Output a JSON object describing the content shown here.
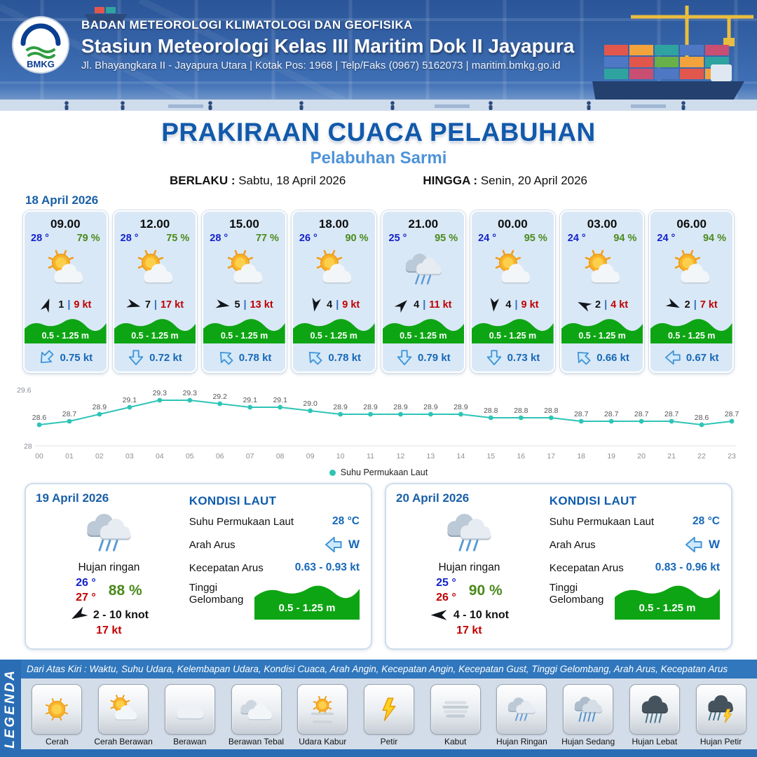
{
  "header": {
    "logo_text": "BMKG",
    "agency": "BADAN METEOROLOGI KLIMATOLOGI DAN GEOFISIKA",
    "station": "Stasiun Meteorologi Kelas III Maritim Dok II Jayapura",
    "address": "Jl. Bhayangkara II - Jayapura Utara | Kotak Pos: 1968 | Telp/Faks (0967) 5162073 | maritim.bmkg.go.id"
  },
  "title": {
    "main": "PRAKIRAAN CUACA PELABUHAN",
    "subtitle": "Pelabuhan Sarmi",
    "berlaku_label": "BERLAKU :",
    "berlaku_value": "Sabtu, 18 April 2026",
    "hingga_label": "HINGGA :",
    "hingga_value": "Senin, 20 April 2026"
  },
  "forecast_date": "18 April 2026",
  "hourly": [
    {
      "time": "09.00",
      "temp": "28 °",
      "rh": "79 %",
      "icon": "cerah-berawan",
      "wind_num": "1",
      "wind_kt": "9 kt",
      "wind_deg": -70,
      "wave": "0.5 - 1.25 m",
      "arus_kt": "0.75 kt",
      "arus_deg": 45
    },
    {
      "time": "12.00",
      "temp": "28 °",
      "rh": "75 %",
      "icon": "cerah-berawan",
      "wind_num": "7",
      "wind_kt": "17 kt",
      "wind_deg": 15,
      "wave": "0.5 - 1.25 m",
      "arus_kt": "0.72 kt",
      "arus_deg": 0
    },
    {
      "time": "15.00",
      "temp": "28 °",
      "rh": "77 %",
      "icon": "cerah-berawan",
      "wind_num": "5",
      "wind_kt": "13 kt",
      "wind_deg": 10,
      "wave": "0.5 - 1.25 m",
      "arus_kt": "0.78 kt",
      "arus_deg": 135
    },
    {
      "time": "18.00",
      "temp": "26 °",
      "rh": "90 %",
      "icon": "cerah-berawan",
      "wind_num": "4",
      "wind_kt": "9 kt",
      "wind_deg": 100,
      "wave": "0.5 - 1.25 m",
      "arus_kt": "0.78 kt",
      "arus_deg": 135
    },
    {
      "time": "21.00",
      "temp": "25 °",
      "rh": "95 %",
      "icon": "hujan-ringan",
      "wind_num": "4",
      "wind_kt": "11 kt",
      "wind_deg": -45,
      "wave": "0.5 - 1.25 m",
      "arus_kt": "0.79 kt",
      "arus_deg": 0
    },
    {
      "time": "00.00",
      "temp": "24 °",
      "rh": "95 %",
      "icon": "cerah-berawan",
      "wind_num": "4",
      "wind_kt": "9 kt",
      "wind_deg": 95,
      "wave": "0.5 - 1.25 m",
      "arus_kt": "0.73 kt",
      "arus_deg": 0
    },
    {
      "time": "03.00",
      "temp": "24 °",
      "rh": "94 %",
      "icon": "cerah-berawan",
      "wind_num": "2",
      "wind_kt": "4 kt",
      "wind_deg": 205,
      "wave": "0.5 - 1.25 m",
      "arus_kt": "0.66 kt",
      "arus_deg": 135
    },
    {
      "time": "06.00",
      "temp": "24 °",
      "rh": "94 %",
      "icon": "cerah-berawan",
      "wind_num": "2",
      "wind_kt": "7 kt",
      "wind_deg": 25,
      "wave": "0.5 - 1.25 m",
      "arus_kt": "0.67 kt",
      "arus_deg": 90
    }
  ],
  "chart_data": {
    "type": "line",
    "x": [
      "00",
      "01",
      "02",
      "03",
      "04",
      "05",
      "06",
      "07",
      "08",
      "09",
      "10",
      "11",
      "12",
      "13",
      "14",
      "15",
      "16",
      "17",
      "18",
      "19",
      "20",
      "21",
      "22",
      "23"
    ],
    "series": [
      {
        "name": "Suhu Permukaan Laut",
        "values": [
          28.6,
          28.7,
          28.9,
          29.1,
          29.3,
          29.3,
          29.2,
          29.1,
          29.1,
          29.0,
          28.9,
          28.9,
          28.9,
          28.9,
          28.9,
          28.8,
          28.8,
          28.8,
          28.7,
          28.7,
          28.7,
          28.7,
          28.6,
          28.7
        ]
      }
    ],
    "ylim": [
      28,
      29.6
    ],
    "y_ticks": [
      "29.6",
      "28"
    ],
    "line_color": "#2ec4b6",
    "legend": "Suhu Permukaan Laut",
    "legend_position": "bottom",
    "grid": false
  },
  "daily": [
    {
      "date": "19 April 2026",
      "icon": "hujan-ringan",
      "condition": "Hujan ringan",
      "temp_min": "26 °",
      "rh": "88 %",
      "temp_max": "27 °",
      "wind": "2  - 10 knot",
      "wind_deg": 150,
      "gust": "17 kt",
      "sea": {
        "heading": "KONDISI LAUT",
        "sst_label": "Suhu Permukaan Laut",
        "sst_value": "28 °C",
        "current_dir_label": "Arah Arus",
        "current_dir": "W",
        "current_speed_label": "Kecepatan Arus",
        "current_speed": "0.63 -  0.93 kt",
        "wave_label": "Tinggi Gelombang",
        "wave_value": "0.5 - 1.25 m"
      }
    },
    {
      "date": "20 April 2026",
      "icon": "hujan-ringan",
      "condition": "Hujan ringan",
      "temp_min": "25 °",
      "rh": "90 %",
      "temp_max": "26 °",
      "wind": "4  - 10 knot",
      "wind_deg": 180,
      "gust": "17 kt",
      "sea": {
        "heading": "KONDISI LAUT",
        "sst_label": "Suhu Permukaan Laut",
        "sst_value": "28 °C",
        "current_dir_label": "Arah Arus",
        "current_dir": "W",
        "current_speed_label": "Kecepatan Arus",
        "current_speed": "0.83  - 0.96 kt",
        "wave_label": "Tinggi Gelombang",
        "wave_value": "0.5 - 1.25 m"
      }
    }
  ],
  "legend": {
    "strip": "Dari Atas Kiri : Waktu, Suhu Udara, Kelembapan Udara, Kondisi Cuaca, Arah Angin, Kecepatan Angin, Kecepatan Gust, Tinggi Gelombang, Arah Arus, Kecepatan Arus",
    "vertical_label": "LEGENDA",
    "items": [
      {
        "icon": "cerah",
        "label": "Cerah"
      },
      {
        "icon": "cerah-berawan",
        "label": "Cerah Berawan"
      },
      {
        "icon": "berawan",
        "label": "Berawan"
      },
      {
        "icon": "berawan-tebal",
        "label": "Berawan Tebal"
      },
      {
        "icon": "udara-kabur",
        "label": "Udara Kabur"
      },
      {
        "icon": "petir",
        "label": "Petir"
      },
      {
        "icon": "kabut",
        "label": "Kabut"
      },
      {
        "icon": "hujan-ringan",
        "label": "Hujan Ringan"
      },
      {
        "icon": "hujan-sedang",
        "label": "Hujan Sedang"
      },
      {
        "icon": "hujan-lebat",
        "label": "Hujan Lebat"
      },
      {
        "icon": "hujan-petir",
        "label": "Hujan Petir"
      }
    ]
  },
  "colors": {
    "accent_blue": "#1159ab",
    "subtitle_blue": "#4e93d9",
    "card_light_blue": "#d9e8f6",
    "wave_green": "#0ea514",
    "humidity_green": "#4a8a1c",
    "temp_blue": "#1322cc",
    "alert_red": "#c00000",
    "value_blue": "#1668b8",
    "teal_line": "#2ec4b6",
    "legend_bar_blue": "#2a6db5"
  }
}
